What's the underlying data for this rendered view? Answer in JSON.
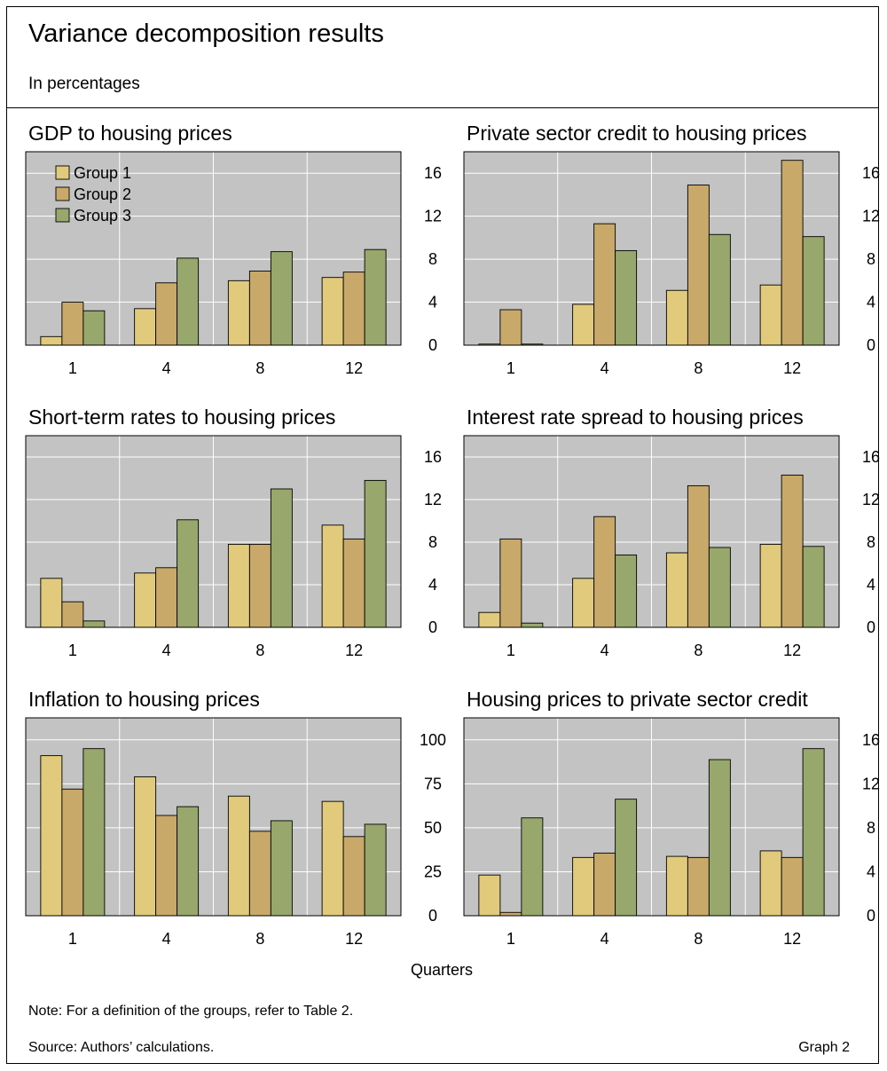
{
  "header": {
    "title": "Variance decomposition results",
    "subtitle": "In percentages"
  },
  "footer": {
    "xaxis_label": "Quarters",
    "note": "Note: For a definition of the groups, refer to Table 2.",
    "source": "Source: Authors’ calculations.",
    "graph_label": "Graph 2"
  },
  "colors": {
    "Group 1": "#e2ca7c",
    "Group 2": "#c9a96a",
    "Group 3": "#98a86c",
    "plot_background": "#c3c3c3",
    "gridline": "#ffffff"
  },
  "chart_data": [
    {
      "type": "bar",
      "title": "GDP to housing prices",
      "categories": [
        "1",
        "4",
        "8",
        "12"
      ],
      "series": [
        {
          "name": "Group 1",
          "values": [
            0.8,
            3.4,
            6.0,
            6.3
          ]
        },
        {
          "name": "Group 2",
          "values": [
            4.0,
            5.8,
            6.9,
            6.8
          ]
        },
        {
          "name": "Group 3",
          "values": [
            3.2,
            8.1,
            8.7,
            8.9
          ]
        }
      ],
      "ylim": [
        0,
        18
      ],
      "yticks": [
        0,
        4,
        8,
        12,
        16
      ],
      "legend": "top-left",
      "grid": true
    },
    {
      "type": "bar",
      "title": "Private sector credit to housing prices",
      "categories": [
        "1",
        "4",
        "8",
        "12"
      ],
      "series": [
        {
          "name": "Group 1",
          "values": [
            0.1,
            3.8,
            5.1,
            5.6
          ]
        },
        {
          "name": "Group 2",
          "values": [
            3.3,
            11.3,
            14.9,
            17.2
          ]
        },
        {
          "name": "Group 3",
          "values": [
            0.1,
            8.8,
            10.3,
            10.1
          ]
        }
      ],
      "ylim": [
        0,
        18
      ],
      "yticks": [
        0,
        4,
        8,
        12,
        16
      ],
      "grid": true
    },
    {
      "type": "bar",
      "title": "Short-term rates to housing prices",
      "categories": [
        "1",
        "4",
        "8",
        "12"
      ],
      "series": [
        {
          "name": "Group 1",
          "values": [
            4.6,
            5.1,
            7.8,
            9.6
          ]
        },
        {
          "name": "Group 2",
          "values": [
            2.4,
            5.6,
            7.8,
            8.3
          ]
        },
        {
          "name": "Group 3",
          "values": [
            0.6,
            10.1,
            13.0,
            13.8
          ]
        }
      ],
      "ylim": [
        0,
        18
      ],
      "yticks": [
        0,
        4,
        8,
        12,
        16
      ],
      "grid": true
    },
    {
      "type": "bar",
      "title": "Interest rate spread to housing prices",
      "categories": [
        "1",
        "4",
        "8",
        "12"
      ],
      "series": [
        {
          "name": "Group 1",
          "values": [
            1.4,
            4.6,
            7.0,
            7.8
          ]
        },
        {
          "name": "Group 2",
          "values": [
            8.3,
            10.4,
            13.3,
            14.3
          ]
        },
        {
          "name": "Group 3",
          "values": [
            0.4,
            6.8,
            7.5,
            7.6
          ]
        }
      ],
      "ylim": [
        0,
        18
      ],
      "yticks": [
        0,
        4,
        8,
        12,
        16
      ],
      "grid": true
    },
    {
      "type": "bar",
      "title": "Inflation to housing prices",
      "categories": [
        "1",
        "4",
        "8",
        "12"
      ],
      "series": [
        {
          "name": "Group 1",
          "values": [
            91,
            79,
            68,
            65
          ]
        },
        {
          "name": "Group 2",
          "values": [
            72,
            57,
            48,
            45
          ]
        },
        {
          "name": "Group 3",
          "values": [
            95,
            62,
            54,
            52
          ]
        }
      ],
      "ylim": [
        0,
        112.5
      ],
      "yticks": [
        0,
        25,
        50,
        75,
        100
      ],
      "grid": true
    },
    {
      "type": "bar",
      "title": "Housing prices to private sector credit",
      "categories": [
        "1",
        "4",
        "8",
        "12"
      ],
      "series": [
        {
          "name": "Group 1",
          "values": [
            3.7,
            5.3,
            5.4,
            5.9
          ]
        },
        {
          "name": "Group 2",
          "values": [
            0.3,
            5.7,
            5.3,
            5.3
          ]
        },
        {
          "name": "Group 3",
          "values": [
            8.9,
            10.6,
            14.2,
            15.2
          ]
        }
      ],
      "ylim": [
        0,
        18
      ],
      "yticks": [
        0,
        4,
        8,
        12,
        16
      ],
      "grid": true
    }
  ]
}
